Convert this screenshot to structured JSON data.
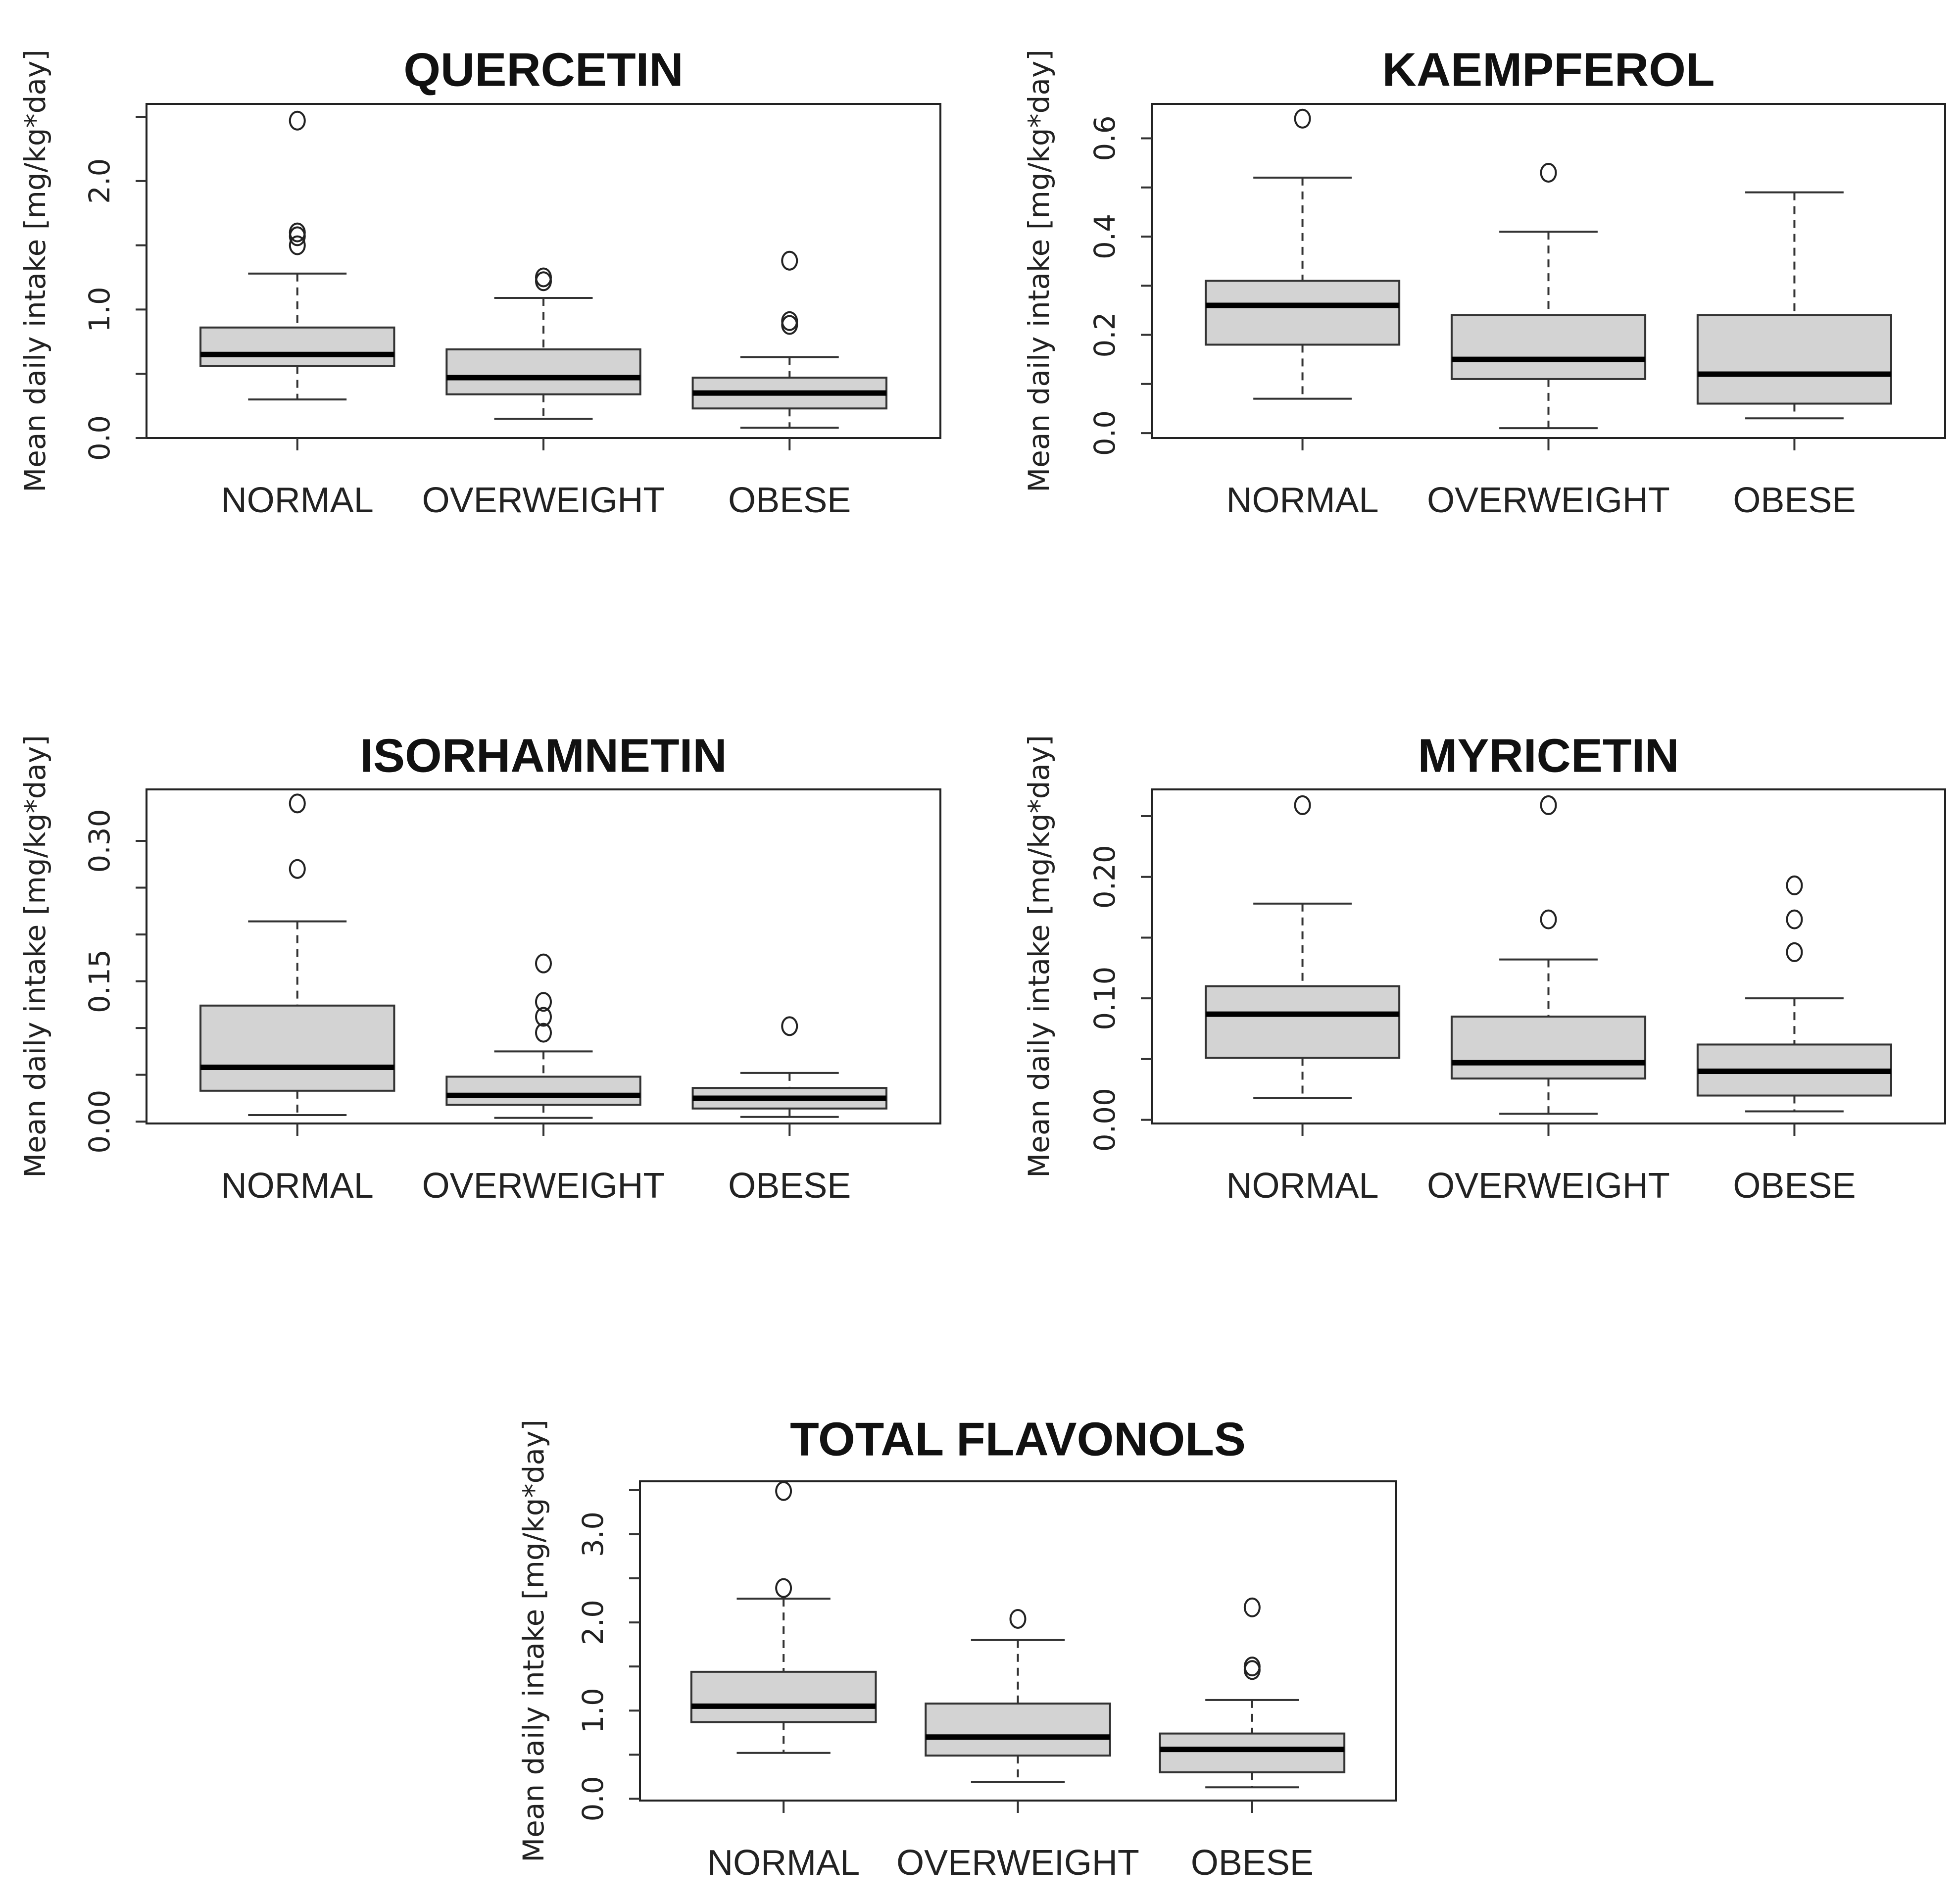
{
  "chart_data": [
    {
      "type": "boxplot",
      "title": "QUERCETIN",
      "ylabel": "Mean daily intake [mg/kg*day]",
      "categories": [
        "NORMAL",
        "OVERWEIGHT",
        "OBESE"
      ],
      "ylim": [
        0,
        2.6
      ],
      "yticks": [
        0.0,
        0.5,
        1.0,
        1.5,
        2.0,
        2.5
      ],
      "ytick_labels": [
        "0.0",
        "",
        "1.0",
        "",
        "2.0",
        ""
      ],
      "boxes": [
        {
          "min": 0.3,
          "q1": 0.56,
          "median": 0.65,
          "q3": 0.86,
          "max": 1.28,
          "outliers": [
            1.5,
            1.57,
            1.6,
            2.47
          ]
        },
        {
          "min": 0.15,
          "q1": 0.34,
          "median": 0.47,
          "q3": 0.69,
          "max": 1.09,
          "outliers": [
            1.22,
            1.25
          ]
        },
        {
          "min": 0.08,
          "q1": 0.23,
          "median": 0.35,
          "q3": 0.47,
          "max": 0.63,
          "outliers": [
            0.88,
            0.91,
            1.38
          ]
        }
      ]
    },
    {
      "type": "boxplot",
      "title": "KAEMPFEROL",
      "ylabel": "Mean daily intake [mg/kg*day]",
      "categories": [
        "NORMAL",
        "OVERWEIGHT",
        "OBESE"
      ],
      "ylim": [
        -0.01,
        0.67
      ],
      "yticks": [
        0.0,
        0.1,
        0.2,
        0.3,
        0.4,
        0.5,
        0.6
      ],
      "ytick_labels": [
        "0.0",
        "",
        "0.2",
        "",
        "0.4",
        "",
        "0.6"
      ],
      "boxes": [
        {
          "min": 0.07,
          "q1": 0.18,
          "median": 0.26,
          "q3": 0.31,
          "max": 0.52,
          "outliers": [
            0.64
          ]
        },
        {
          "min": 0.01,
          "q1": 0.11,
          "median": 0.15,
          "q3": 0.24,
          "max": 0.41,
          "outliers": [
            0.53
          ]
        },
        {
          "min": 0.03,
          "q1": 0.06,
          "median": 0.12,
          "q3": 0.24,
          "max": 0.49,
          "outliers": []
        }
      ]
    },
    {
      "type": "boxplot",
      "title": "ISORHAMNETIN",
      "ylabel": "Mean daily intake [mg/kg*day]",
      "categories": [
        "NORMAL",
        "OVERWEIGHT",
        "OBESE"
      ],
      "ylim": [
        -0.002,
        0.355
      ],
      "yticks": [
        0.0,
        0.05,
        0.1,
        0.15,
        0.2,
        0.25,
        0.3
      ],
      "ytick_labels": [
        "0.00",
        "",
        "",
        "0.15",
        "",
        "",
        "0.30"
      ],
      "boxes": [
        {
          "min": 0.007,
          "q1": 0.033,
          "median": 0.058,
          "q3": 0.124,
          "max": 0.214,
          "outliers": [
            0.27,
            0.34
          ]
        },
        {
          "min": 0.004,
          "q1": 0.018,
          "median": 0.028,
          "q3": 0.048,
          "max": 0.075,
          "outliers": [
            0.095,
            0.112,
            0.128,
            0.169
          ]
        },
        {
          "min": 0.005,
          "q1": 0.014,
          "median": 0.025,
          "q3": 0.036,
          "max": 0.052,
          "outliers": [
            0.102
          ]
        }
      ]
    },
    {
      "type": "boxplot",
      "title": "MYRICETIN",
      "ylabel": "Mean daily intake [mg/kg*day]",
      "categories": [
        "NORMAL",
        "OVERWEIGHT",
        "OBESE"
      ],
      "ylim": [
        -0.003,
        0.272
      ],
      "yticks": [
        0.0,
        0.05,
        0.1,
        0.15,
        0.2,
        0.25
      ],
      "ytick_labels": [
        "0.00",
        "",
        "0.10",
        "",
        "0.20",
        ""
      ],
      "boxes": [
        {
          "min": 0.018,
          "q1": 0.051,
          "median": 0.087,
          "q3": 0.11,
          "max": 0.178,
          "outliers": [
            0.259
          ]
        },
        {
          "min": 0.005,
          "q1": 0.034,
          "median": 0.047,
          "q3": 0.085,
          "max": 0.132,
          "outliers": [
            0.165,
            0.259
          ]
        },
        {
          "min": 0.007,
          "q1": 0.02,
          "median": 0.04,
          "q3": 0.062,
          "max": 0.1,
          "outliers": [
            0.138,
            0.165,
            0.193
          ]
        }
      ]
    },
    {
      "type": "boxplot",
      "title": "TOTAL FLAVONOLS",
      "ylabel": "Mean daily intake [mg/kg*day]",
      "categories": [
        "NORMAL",
        "OVERWEIGHT",
        "OBESE"
      ],
      "ylim": [
        -0.02,
        3.6
      ],
      "yticks": [
        0.0,
        0.5,
        1.0,
        1.5,
        2.0,
        2.5,
        3.0,
        3.5
      ],
      "ytick_labels": [
        "0.0",
        "",
        "1.0",
        "",
        "2.0",
        "",
        "3.0",
        ""
      ],
      "boxes": [
        {
          "min": 0.52,
          "q1": 0.87,
          "median": 1.05,
          "q3": 1.44,
          "max": 2.27,
          "outliers": [
            2.39,
            3.49
          ]
        },
        {
          "min": 0.19,
          "q1": 0.49,
          "median": 0.7,
          "q3": 1.08,
          "max": 1.8,
          "outliers": [
            2.04
          ]
        },
        {
          "min": 0.13,
          "q1": 0.3,
          "median": 0.56,
          "q3": 0.74,
          "max": 1.12,
          "outliers": [
            1.46,
            1.5,
            2.17
          ]
        }
      ]
    }
  ]
}
